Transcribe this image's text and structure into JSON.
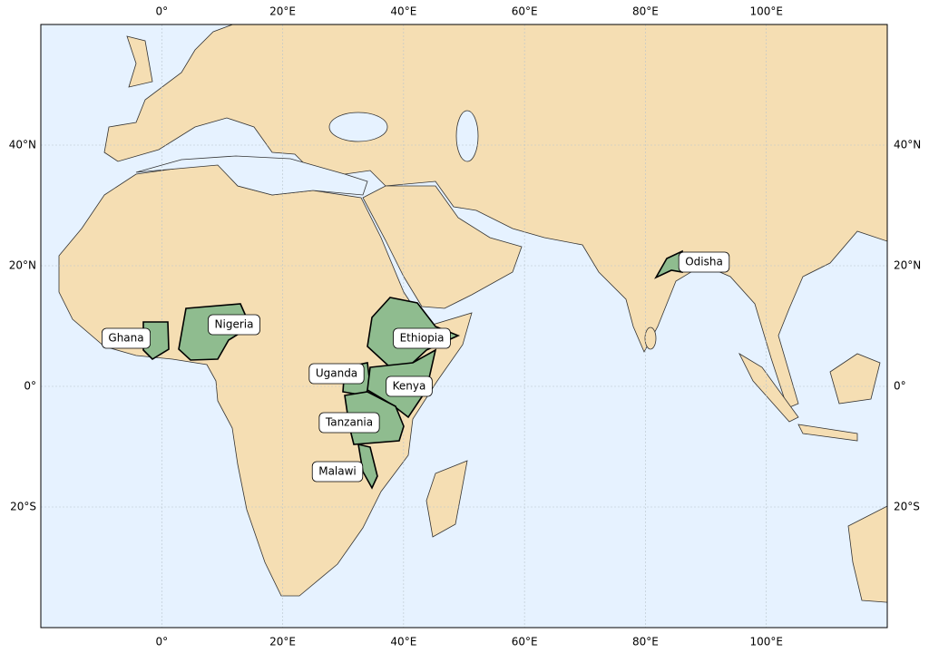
{
  "chart_data": {
    "type": "map",
    "xlim": [
      -20,
      120
    ],
    "ylim": [
      -40,
      60
    ],
    "xticks": [
      {
        "value": 0,
        "label": "0°"
      },
      {
        "value": 20,
        "label": "20°E"
      },
      {
        "value": 40,
        "label": "40°E"
      },
      {
        "value": 60,
        "label": "60°E"
      },
      {
        "value": 80,
        "label": "80°E"
      },
      {
        "value": 100,
        "label": "100°E"
      }
    ],
    "yticks": [
      {
        "value": -20,
        "label": "20°S"
      },
      {
        "value": 0,
        "label": "0°"
      },
      {
        "value": 20,
        "label": "20°N"
      },
      {
        "value": 40,
        "label": "40°N"
      }
    ],
    "grid": true,
    "color": "#8fbc8f",
    "regions": [
      {
        "name": "Ghana"
      },
      {
        "name": "Nigeria"
      },
      {
        "name": "Ethiopia"
      },
      {
        "name": "Uganda"
      },
      {
        "name": "Kenya"
      },
      {
        "name": "Tanzania"
      },
      {
        "name": "Malawi"
      },
      {
        "name": "Odisha"
      }
    ]
  }
}
